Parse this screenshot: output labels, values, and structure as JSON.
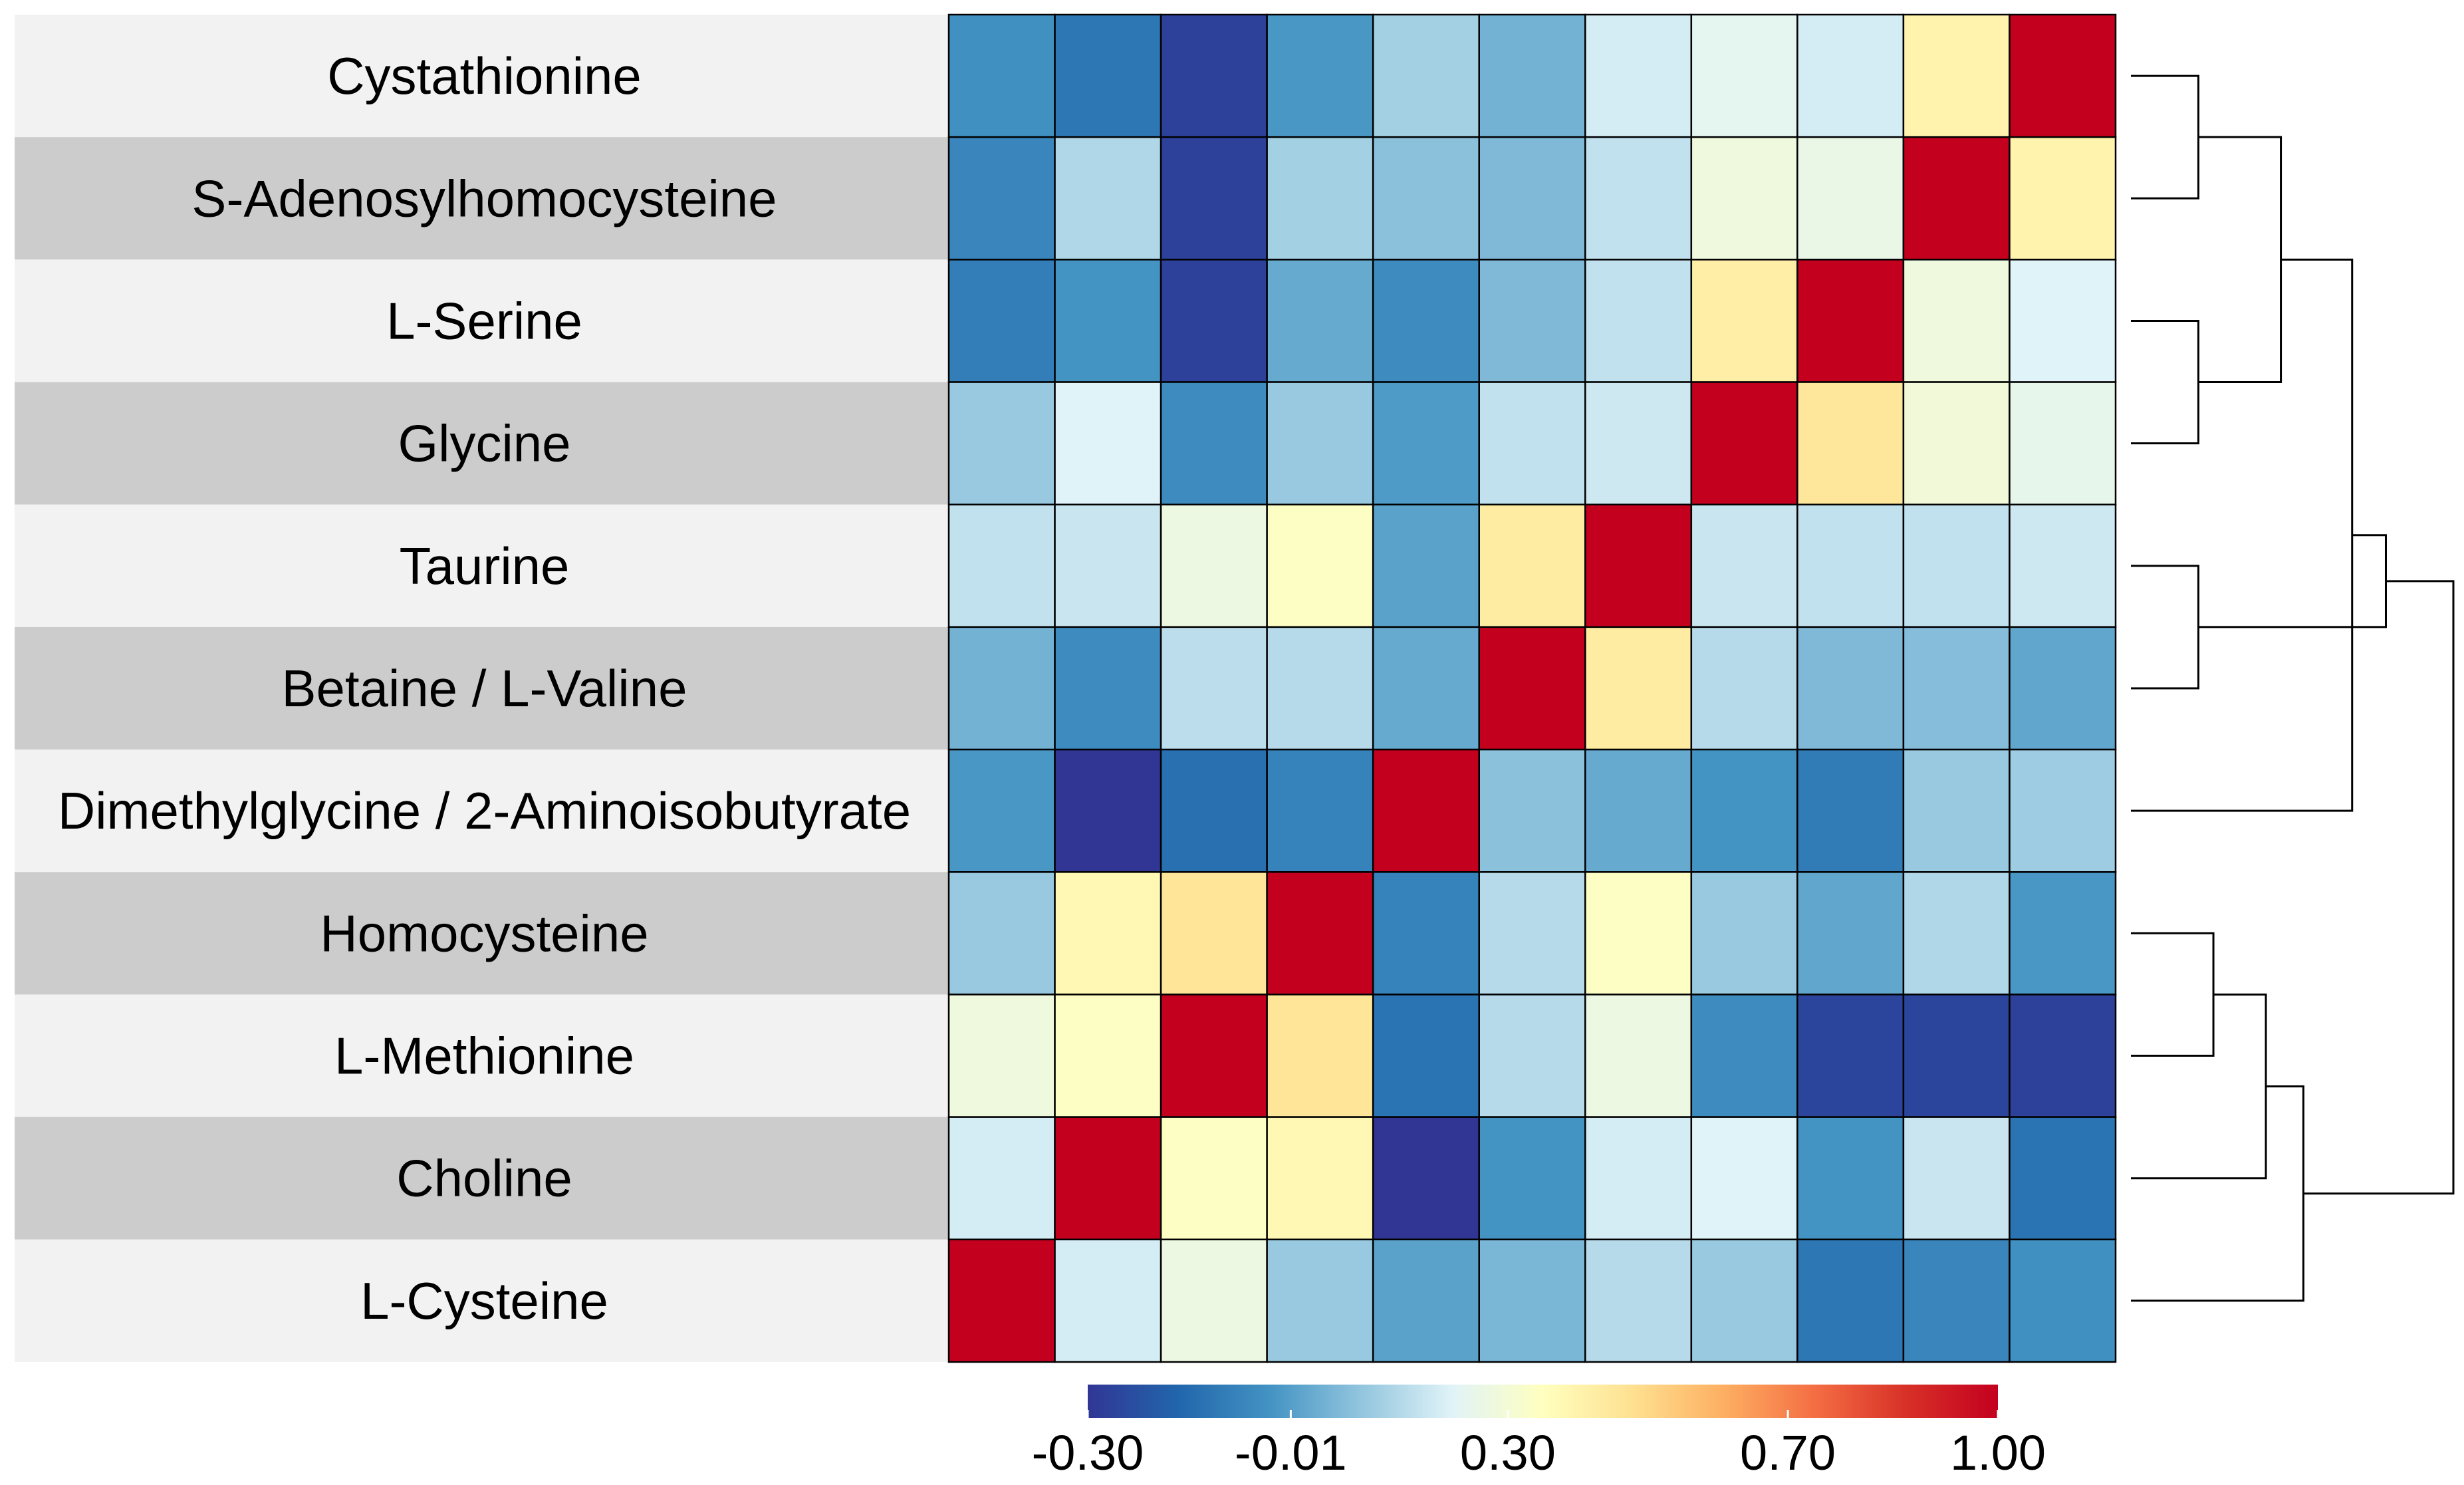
{
  "chart_data": {
    "type": "heatmap",
    "title": "",
    "row_labels": [
      "Cystathionine",
      "S-Adenosylhomocysteine",
      "L-Serine",
      "Glycine",
      "Taurine",
      "Betaine / L-Valine",
      "Dimethylglycine / 2-Aminoisobutyrate",
      "Homocysteine",
      "L-Methionine",
      "Choline",
      "L-Cysteine"
    ],
    "column_order_note": "Columns follow the same order as rows reversed (L-Cysteine ... Cystathionine)",
    "values": [
      [
        -0.05,
        -0.12,
        -0.27,
        -0.03,
        0.12,
        0.04,
        0.2,
        0.24,
        0.2,
        0.4,
        1.0
      ],
      [
        -0.08,
        0.14,
        -0.27,
        0.12,
        0.08,
        0.06,
        0.17,
        0.28,
        0.26,
        1.0,
        0.4
      ],
      [
        -0.1,
        -0.04,
        -0.27,
        0.02,
        -0.06,
        0.06,
        0.17,
        0.42,
        1.0,
        0.28,
        0.22
      ],
      [
        0.1,
        0.22,
        -0.06,
        0.1,
        -0.02,
        0.17,
        0.19,
        1.0,
        0.45,
        0.29,
        0.25
      ],
      [
        0.17,
        0.18,
        0.27,
        0.34,
        0.0,
        0.43,
        1.0,
        0.18,
        0.17,
        0.17,
        0.19
      ],
      [
        0.04,
        -0.06,
        0.16,
        0.15,
        0.02,
        1.0,
        0.43,
        0.15,
        0.06,
        0.07,
        0.01
      ],
      [
        -0.03,
        -0.3,
        -0.14,
        -0.09,
        1.0,
        0.08,
        0.02,
        -0.04,
        -0.11,
        0.1,
        0.11
      ],
      [
        0.1,
        0.38,
        0.46,
        1.0,
        -0.09,
        0.15,
        0.34,
        0.1,
        0.01,
        0.14,
        -0.03
      ],
      [
        0.28,
        0.34,
        1.0,
        0.46,
        -0.13,
        0.15,
        0.27,
        -0.06,
        -0.26,
        -0.26,
        -0.27
      ],
      [
        0.2,
        1.0,
        0.34,
        0.38,
        -0.3,
        -0.04,
        0.2,
        0.22,
        -0.04,
        0.18,
        -0.13
      ],
      [
        1.0,
        0.2,
        0.27,
        0.1,
        0.0,
        0.05,
        0.15,
        0.1,
        -0.12,
        -0.08,
        -0.05
      ]
    ],
    "colorbar": {
      "min": -0.3,
      "max": 1.0,
      "ticks": [
        -0.3,
        -0.01,
        0.3,
        0.7,
        1.0
      ],
      "tick_labels": [
        "-0.30",
        "-0.01",
        "0.30",
        "0.70",
        "1.00"
      ],
      "palette": "RdYlBu (reversed)"
    },
    "row_dendrogram": {
      "side": "right",
      "merges": [
        [
          0,
          1,
          0.18
        ],
        [
          2,
          3,
          0.18
        ],
        [
          -1,
          -2,
          0.4
        ],
        [
          4,
          5,
          0.18
        ],
        [
          7,
          8,
          0.22
        ],
        [
          -5,
          9,
          0.36
        ],
        [
          -6,
          10,
          0.46
        ],
        [
          -3,
          6,
          0.59
        ],
        [
          -4,
          -8,
          0.68
        ],
        [
          -9,
          -7,
          0.86
        ]
      ],
      "note": "Merge format [a, b, height]: non-negative = row index, negative = earlier merge number (1-based)"
    },
    "colors": {
      "stops": [
        "#313695",
        "#2166ac",
        "#4393c3",
        "#92c5de",
        "#e0f3f8",
        "#ffffbf",
        "#fee090",
        "#fdae61",
        "#f46d43",
        "#d73027",
        "#c4001f"
      ],
      "stripe_light": "#f2f2f2",
      "stripe_dark": "#cccccc",
      "grid": "#000000"
    }
  }
}
